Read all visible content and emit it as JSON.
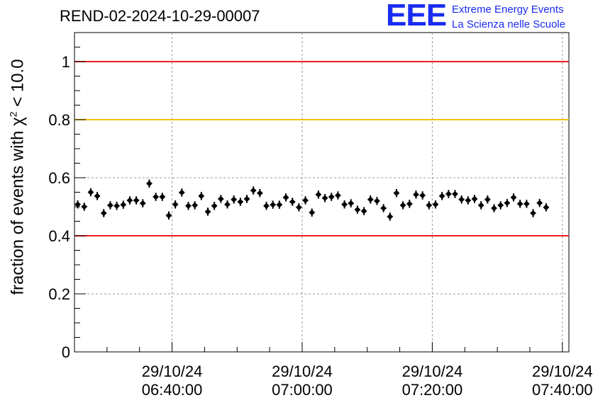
{
  "title": "REND-02-2024-10-29-00007",
  "logo": {
    "mark": "EEE",
    "line1": "Extreme Energy Events",
    "line2": "La Scienza nelle Scuole"
  },
  "ylabel": {
    "prefix": "fraction of events with ",
    "symbol": "χ",
    "sup": "2",
    "suffix": " < 10.0"
  },
  "chart_data": {
    "type": "scatter",
    "title": "REND-02-2024-10-29-00007",
    "xlabel": "",
    "ylabel": "fraction of events with χ² < 10.0",
    "x_axis": {
      "kind": "time",
      "start": "29/10/24 06:25:00",
      "end": "29/10/24 07:41:00",
      "ticks": [
        {
          "date": "29/10/24",
          "time": "06:40:00"
        },
        {
          "date": "29/10/24",
          "time": "07:00:00"
        },
        {
          "date": "29/10/24",
          "time": "07:20:00"
        },
        {
          "date": "29/10/24",
          "time": "07:40:00"
        }
      ]
    },
    "ylim": [
      0,
      1.1
    ],
    "y_ticks": [
      "0",
      "0.2",
      "0.4",
      "0.6",
      "0.8",
      "1"
    ],
    "grid": true,
    "reference_lines": [
      {
        "y": 1.0,
        "color": "#e8201e"
      },
      {
        "y": 0.8,
        "color": "#f5c000"
      },
      {
        "y": 0.4,
        "color": "#e8201e"
      }
    ],
    "series": [
      {
        "color": "#000000",
        "error": 0.014,
        "points": [
          {
            "t": "06:25:30",
            "y": 0.508
          },
          {
            "t": "06:26:30",
            "y": 0.5
          },
          {
            "t": "06:27:30",
            "y": 0.55
          },
          {
            "t": "06:28:30",
            "y": 0.537
          },
          {
            "t": "06:29:30",
            "y": 0.478
          },
          {
            "t": "06:30:30",
            "y": 0.505
          },
          {
            "t": "06:31:30",
            "y": 0.503
          },
          {
            "t": "06:32:30",
            "y": 0.507
          },
          {
            "t": "06:33:30",
            "y": 0.522
          },
          {
            "t": "06:34:30",
            "y": 0.522
          },
          {
            "t": "06:35:30",
            "y": 0.512
          },
          {
            "t": "06:36:30",
            "y": 0.58
          },
          {
            "t": "06:37:30",
            "y": 0.534
          },
          {
            "t": "06:38:30",
            "y": 0.534
          },
          {
            "t": "06:39:30",
            "y": 0.47
          },
          {
            "t": "06:40:30",
            "y": 0.508
          },
          {
            "t": "06:41:30",
            "y": 0.549
          },
          {
            "t": "06:42:30",
            "y": 0.503
          },
          {
            "t": "06:43:30",
            "y": 0.505
          },
          {
            "t": "06:44:30",
            "y": 0.537
          },
          {
            "t": "06:45:30",
            "y": 0.483
          },
          {
            "t": "06:46:30",
            "y": 0.503
          },
          {
            "t": "06:47:30",
            "y": 0.527
          },
          {
            "t": "06:48:30",
            "y": 0.508
          },
          {
            "t": "06:49:30",
            "y": 0.525
          },
          {
            "t": "06:50:30",
            "y": 0.517
          },
          {
            "t": "06:51:30",
            "y": 0.527
          },
          {
            "t": "06:52:30",
            "y": 0.556
          },
          {
            "t": "06:53:30",
            "y": 0.547
          },
          {
            "t": "06:54:30",
            "y": 0.503
          },
          {
            "t": "06:55:30",
            "y": 0.507
          },
          {
            "t": "06:56:30",
            "y": 0.507
          },
          {
            "t": "06:57:30",
            "y": 0.532
          },
          {
            "t": "06:58:30",
            "y": 0.517
          },
          {
            "t": "06:59:30",
            "y": 0.498
          },
          {
            "t": "07:00:30",
            "y": 0.522
          },
          {
            "t": "07:01:30",
            "y": 0.48
          },
          {
            "t": "07:02:30",
            "y": 0.542
          },
          {
            "t": "07:03:30",
            "y": 0.53
          },
          {
            "t": "07:04:30",
            "y": 0.534
          },
          {
            "t": "07:05:30",
            "y": 0.539
          },
          {
            "t": "07:06:30",
            "y": 0.508
          },
          {
            "t": "07:07:30",
            "y": 0.512
          },
          {
            "t": "07:08:30",
            "y": 0.49
          },
          {
            "t": "07:09:30",
            "y": 0.485
          },
          {
            "t": "07:10:30",
            "y": 0.525
          },
          {
            "t": "07:11:30",
            "y": 0.52
          },
          {
            "t": "07:12:30",
            "y": 0.495
          },
          {
            "t": "07:13:30",
            "y": 0.466
          },
          {
            "t": "07:14:30",
            "y": 0.547
          },
          {
            "t": "07:15:30",
            "y": 0.505
          },
          {
            "t": "07:16:30",
            "y": 0.51
          },
          {
            "t": "07:17:30",
            "y": 0.542
          },
          {
            "t": "07:18:30",
            "y": 0.539
          },
          {
            "t": "07:19:30",
            "y": 0.505
          },
          {
            "t": "07:20:30",
            "y": 0.508
          },
          {
            "t": "07:21:30",
            "y": 0.537
          },
          {
            "t": "07:22:30",
            "y": 0.544
          },
          {
            "t": "07:23:30",
            "y": 0.544
          },
          {
            "t": "07:24:30",
            "y": 0.525
          },
          {
            "t": "07:25:30",
            "y": 0.522
          },
          {
            "t": "07:26:30",
            "y": 0.527
          },
          {
            "t": "07:27:30",
            "y": 0.505
          },
          {
            "t": "07:28:30",
            "y": 0.525
          },
          {
            "t": "07:29:30",
            "y": 0.495
          },
          {
            "t": "07:30:30",
            "y": 0.505
          },
          {
            "t": "07:31:30",
            "y": 0.513
          },
          {
            "t": "07:32:30",
            "y": 0.532
          },
          {
            "t": "07:33:30",
            "y": 0.51
          },
          {
            "t": "07:34:30",
            "y": 0.51
          },
          {
            "t": "07:35:30",
            "y": 0.478
          },
          {
            "t": "07:36:30",
            "y": 0.513
          },
          {
            "t": "07:37:30",
            "y": 0.498
          }
        ]
      }
    ]
  }
}
